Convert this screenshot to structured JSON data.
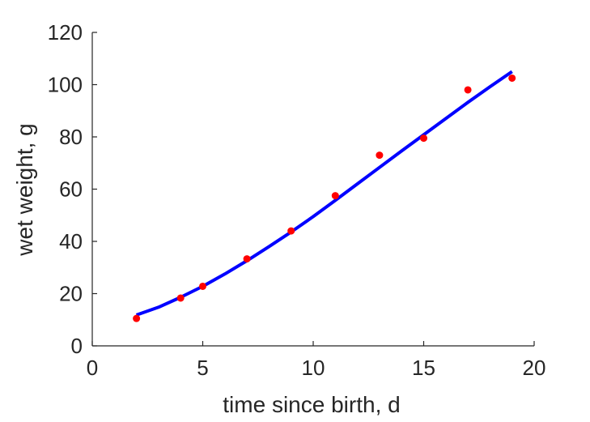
{
  "chart_data": {
    "type": "scatter",
    "title": "",
    "xlabel": "time since birth, d",
    "ylabel": "wet weight, g",
    "xlim": [
      0,
      20
    ],
    "ylim": [
      0,
      120
    ],
    "xticks": [
      0,
      5,
      10,
      15,
      20
    ],
    "yticks": [
      0,
      20,
      40,
      60,
      80,
      100,
      120
    ],
    "grid": false,
    "legend": "none",
    "series": [
      {
        "kind": "scatter",
        "color": "#ff0000",
        "x": [
          2,
          4,
          5,
          7,
          9,
          11,
          13,
          15,
          17,
          19
        ],
        "y": [
          10.5,
          18.3,
          22.8,
          33.3,
          44.0,
          57.5,
          73.0,
          79.5,
          98.0,
          102.5
        ]
      },
      {
        "kind": "line",
        "color": "#0000ff",
        "x": [
          2,
          3,
          4,
          5,
          6,
          7,
          8,
          9,
          10,
          11,
          12,
          13,
          14,
          15,
          16,
          17,
          18,
          19
        ],
        "y": [
          11.8,
          14.8,
          18.6,
          22.8,
          27.5,
          32.6,
          38.0,
          43.6,
          49.5,
          55.7,
          62.0,
          68.3,
          74.6,
          80.8,
          87.0,
          93.2,
          99.2,
          105.0
        ]
      }
    ]
  }
}
